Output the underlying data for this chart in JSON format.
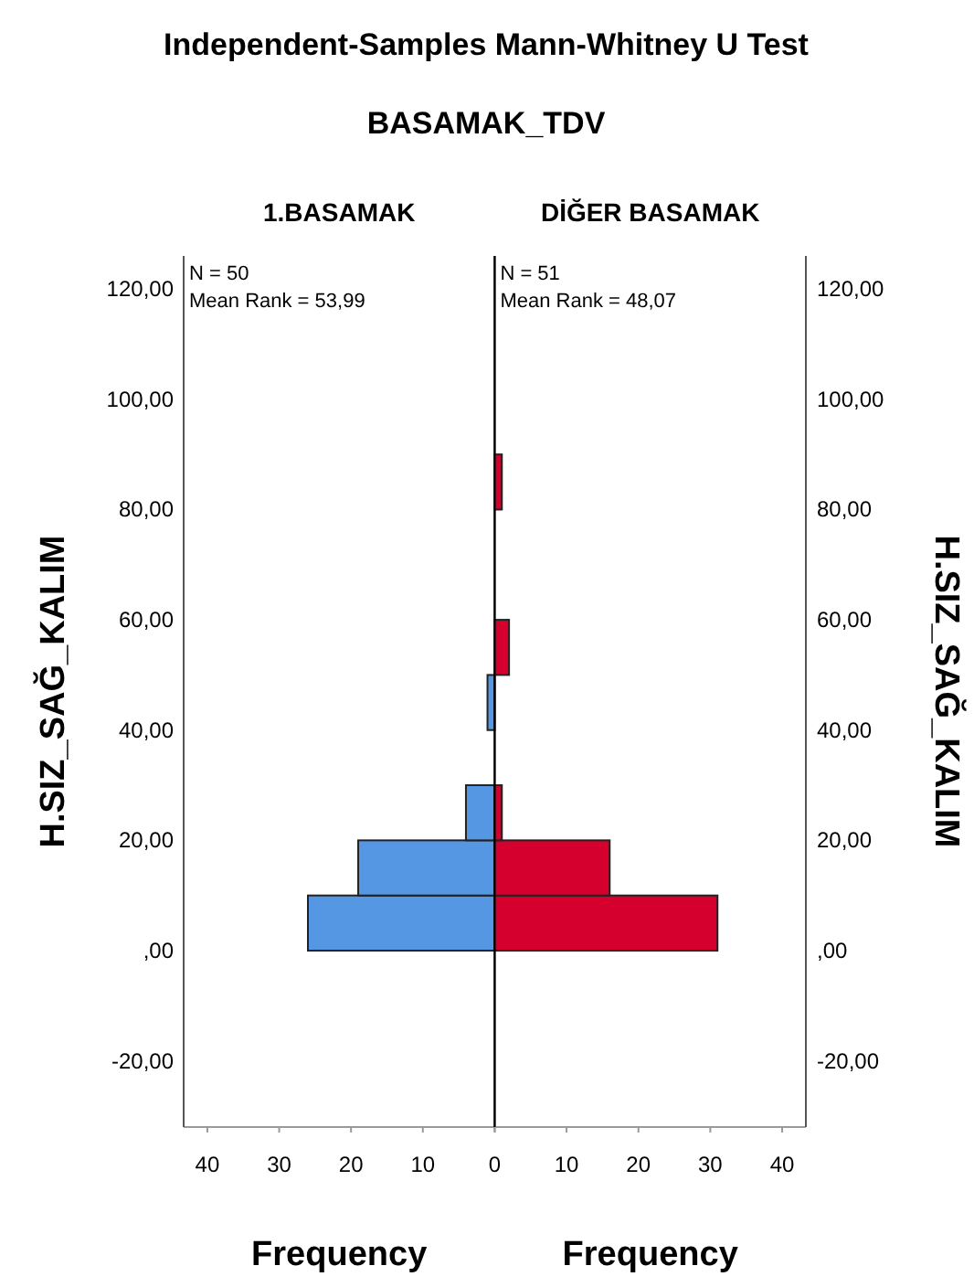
{
  "chart_data": [
    {
      "type": "histogram",
      "title": "Independent-Samples Mann-Whitney U Test",
      "subtitle": "BASAMAK_TDV",
      "orientation": "horizontal",
      "xlabel": "Frequency",
      "ylabel": "H.SIZ_SAĞ_KALIM",
      "bins": [
        0,
        10,
        20,
        30,
        40,
        50,
        60,
        70,
        80,
        90
      ],
      "values": [
        26,
        19,
        4,
        0,
        1,
        0,
        0,
        0,
        0
      ],
      "color": "#5597e3",
      "xlim": [
        43.3,
        0
      ],
      "xticks": [
        40,
        30,
        20,
        10,
        {
          "value": 0,
          "label": null
        }
      ],
      "ylim": [
        -32,
        126
      ],
      "yticks": [
        {
          "value": -20,
          "label": "-20,00"
        },
        {
          "value": 0,
          "label": ",00"
        },
        {
          "value": 20,
          "label": "20,00"
        },
        {
          "value": 40,
          "label": "40,00"
        },
        {
          "value": 60,
          "label": "60,00"
        },
        {
          "value": 80,
          "label": "80,00"
        },
        {
          "value": 100,
          "label": "100,00"
        },
        {
          "value": 120,
          "label": "120,00"
        }
      ],
      "annotations": [
        "1.BASAMAK",
        "N = 50",
        "Mean Rank = 53,99"
      ]
    },
    {
      "type": "histogram",
      "title": "DİĞER BASAMAK",
      "orientation": "horizontal",
      "xlabel": "Frequency",
      "ylabel": "H.SIZ_SAĞ_KALIM",
      "bins": [
        0,
        10,
        20,
        30,
        40,
        50,
        60,
        70,
        80,
        90
      ],
      "values": [
        31,
        16,
        1,
        0,
        0,
        2,
        0,
        0,
        1
      ],
      "color": "#d6002e",
      "xlim": [
        0,
        43.3
      ],
      "xticks": [
        0,
        10,
        20,
        30,
        40
      ],
      "ylim": [
        -32,
        126
      ],
      "yticks": [
        {
          "value": -20,
          "label": "-20,00"
        },
        {
          "value": 0,
          "label": ",00"
        },
        {
          "value": 20,
          "label": "20,00"
        },
        {
          "value": 40,
          "label": "40,00"
        },
        {
          "value": 60,
          "label": "60,00"
        },
        {
          "value": 80,
          "label": "80,00"
        },
        {
          "value": 100,
          "label": "100,00"
        },
        {
          "value": 120,
          "label": "120,00"
        }
      ],
      "annotations": [
        "N = 51",
        "Mean Rank = 48,07"
      ]
    }
  ]
}
